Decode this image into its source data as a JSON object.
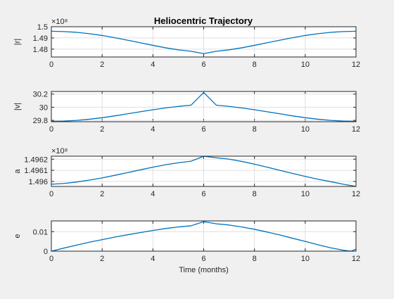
{
  "chart_data": [
    {
      "type": "line",
      "title": "Heliocentric Trajectory",
      "xlabel": "",
      "ylabel": "|r|",
      "exponent_label": "×10⁸",
      "xlim": [
        0,
        12
      ],
      "ylim": [
        1.473,
        1.5
      ],
      "xticks": [
        "0",
        "2",
        "4",
        "6",
        "8",
        "10",
        "12"
      ],
      "yticks": [
        "1.48",
        "1.49",
        "1.5"
      ],
      "ytick_values": [
        1.48,
        1.49,
        1.5
      ],
      "grid": true,
      "x": [
        0,
        0.5,
        1,
        1.5,
        2,
        2.5,
        3,
        3.5,
        4,
        4.5,
        5,
        5.5,
        6,
        6.5,
        7,
        7.5,
        8,
        8.5,
        9,
        9.5,
        10,
        10.5,
        11,
        11.5,
        12
      ],
      "values": [
        1.496,
        1.4957,
        1.495,
        1.4938,
        1.4922,
        1.4902,
        1.488,
        1.4857,
        1.4834,
        1.4812,
        1.4794,
        1.4781,
        1.476,
        1.4781,
        1.4794,
        1.4812,
        1.4834,
        1.4857,
        1.488,
        1.4902,
        1.4922,
        1.4938,
        1.495,
        1.4957,
        1.496
      ],
      "color": "#0072bd"
    },
    {
      "type": "line",
      "title": "",
      "xlabel": "",
      "ylabel": "|v|",
      "xlim": [
        0,
        12
      ],
      "ylim": [
        29.78,
        30.24
      ],
      "xticks": [
        "0",
        "2",
        "4",
        "6",
        "8",
        "10",
        "12"
      ],
      "yticks": [
        "29.8",
        "30",
        "30.2"
      ],
      "ytick_values": [
        29.8,
        30.0,
        30.2
      ],
      "grid": true,
      "x": [
        0,
        0.5,
        1,
        1.5,
        2,
        2.5,
        3,
        3.5,
        4,
        4.5,
        5,
        5.5,
        6,
        6.5,
        7,
        7.5,
        8,
        8.5,
        9,
        9.5,
        10,
        10.5,
        11,
        11.5,
        12
      ],
      "values": [
        29.785,
        29.789,
        29.8,
        29.818,
        29.841,
        29.869,
        29.9,
        29.931,
        29.962,
        29.99,
        30.013,
        30.031,
        30.225,
        30.031,
        30.013,
        29.99,
        29.962,
        29.931,
        29.9,
        29.869,
        29.841,
        29.818,
        29.8,
        29.789,
        29.785
      ],
      "color": "#0072bd"
    },
    {
      "type": "line",
      "title": "",
      "xlabel": "",
      "ylabel": "a",
      "exponent_label": "×10⁸",
      "xlim": [
        0,
        12
      ],
      "ylim": [
        1.495955,
        1.496227
      ],
      "xticks": [
        "0",
        "2",
        "4",
        "6",
        "8",
        "10",
        "12"
      ],
      "yticks": [
        "1.496",
        "1.4961",
        "1.4962"
      ],
      "ytick_values": [
        1.496,
        1.4961,
        1.4962
      ],
      "grid": true,
      "x": [
        0,
        0.5,
        1,
        1.5,
        2,
        2.5,
        3,
        3.5,
        4,
        4.5,
        5,
        5.5,
        6,
        6.5,
        7,
        7.5,
        8,
        8.5,
        9,
        9.5,
        10,
        10.5,
        11,
        11.5,
        12
      ],
      "values": [
        1.495975,
        1.495982,
        1.495995,
        1.496012,
        1.496032,
        1.496055,
        1.496079,
        1.496104,
        1.496128,
        1.49615,
        1.496168,
        1.496182,
        1.496226,
        1.496213,
        1.4962,
        1.49618,
        1.496155,
        1.496128,
        1.4961,
        1.496072,
        1.496045,
        1.49602,
        1.495998,
        1.495975,
        1.495956
      ],
      "color": "#0072bd"
    },
    {
      "type": "line",
      "title": "",
      "xlabel": "Time (months)",
      "ylabel": "e",
      "xlim": [
        0,
        12
      ],
      "ylim": [
        0,
        0.0155
      ],
      "xticks": [
        "0",
        "2",
        "4",
        "6",
        "8",
        "10",
        "12"
      ],
      "yticks": [
        "0",
        "0.01"
      ],
      "ytick_values": [
        0,
        0.01
      ],
      "grid": true,
      "x": [
        0,
        0.5,
        1,
        1.5,
        2,
        2.5,
        3,
        3.5,
        4,
        4.5,
        5,
        5.5,
        6,
        6.5,
        7,
        7.5,
        8,
        8.5,
        9,
        9.5,
        10,
        10.5,
        11,
        11.5,
        11.8,
        12
      ],
      "values": [
        0,
        0.0016,
        0.0031,
        0.0046,
        0.0059,
        0.0072,
        0.0084,
        0.0095,
        0.0106,
        0.0116,
        0.0124,
        0.013,
        0.0151,
        0.014,
        0.0134,
        0.0124,
        0.0112,
        0.0098,
        0.0083,
        0.0066,
        0.005,
        0.0033,
        0.0017,
        0.0005,
        0,
        0.001
      ],
      "color": "#0072bd"
    }
  ]
}
